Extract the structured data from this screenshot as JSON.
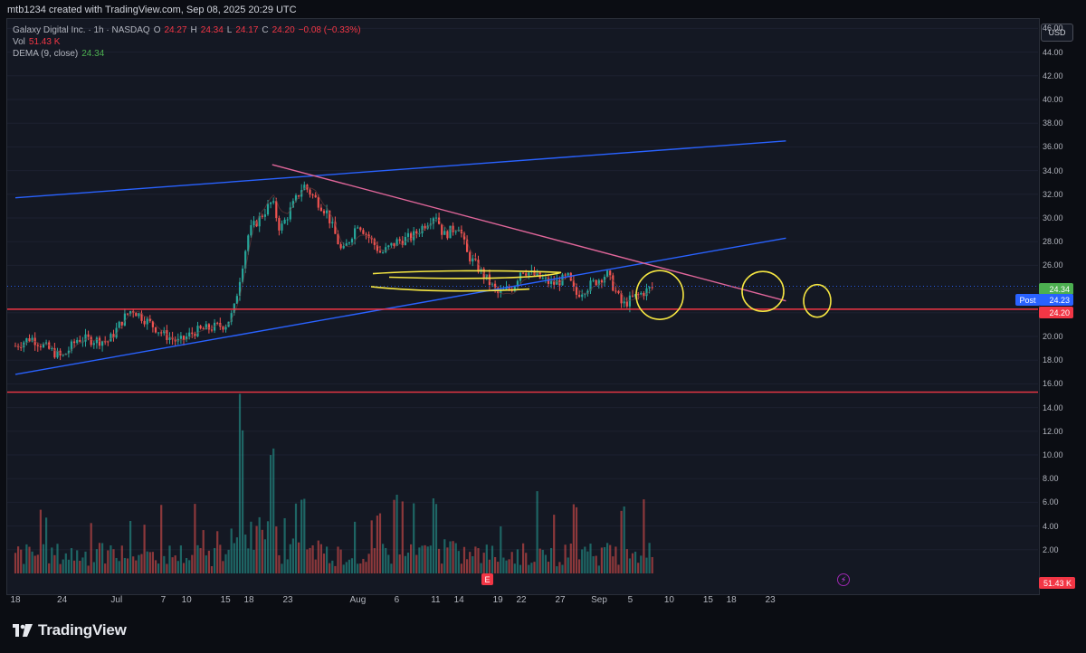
{
  "header": {
    "credit": "mtb1234 created with TradingView.com, Sep 08, 2025 20:29 UTC",
    "symbol": "Galaxy Digital Inc. · 1h · NASDAQ",
    "open_label": "O",
    "open": "24.27",
    "high_label": "H",
    "high": "24.34",
    "low_label": "L",
    "low": "24.17",
    "close_label": "C",
    "close": "24.20",
    "change": "−0.08 (−0.33%)",
    "vol_label": "Vol",
    "vol": "51.43 K",
    "dema_label": "DEMA (9, close)",
    "dema": "24.34",
    "currency": "USD"
  },
  "badges": {
    "dema": "24.34",
    "post_label": "Post",
    "post": "24.23",
    "last": "24.20",
    "volume": "51.43 K"
  },
  "footer": {
    "brand": "TradingView"
  },
  "markers": {
    "earnings": "E",
    "flash": "⚡"
  },
  "colors": {
    "up": "#26a69a",
    "down": "#ef5350",
    "dema": "#4caf50",
    "channel": "#2962ff",
    "downtrend": "#e0669a",
    "support": "#f23645",
    "annotation": "#f5e642"
  },
  "chart_data": {
    "type": "candlestick",
    "ylim": [
      0,
      47
    ],
    "yticks": [
      "46.00",
      "44.00",
      "42.00",
      "40.00",
      "38.00",
      "36.00",
      "34.00",
      "32.00",
      "30.00",
      "28.00",
      "26.00",
      "24.00",
      "22.00",
      "20.00",
      "18.00",
      "16.00",
      "14.00",
      "12.00",
      "10.00",
      "8.00",
      "6.00",
      "4.00",
      "2.00"
    ],
    "xticks": [
      "18",
      "24",
      "Jul",
      "7",
      "10",
      "15",
      "18",
      "23",
      "Aug",
      "6",
      "11",
      "14",
      "19",
      "22",
      "27",
      "Sep",
      "5",
      "10",
      "15",
      "18",
      "23"
    ],
    "close_path": [
      {
        "x": "Jun 18",
        "y": 19.2
      },
      {
        "x": "Jun 20",
        "y": 19.9
      },
      {
        "x": "Jun 24",
        "y": 18.2
      },
      {
        "x": "Jun 26",
        "y": 19.8
      },
      {
        "x": "Jun 30",
        "y": 19.6
      },
      {
        "x": "Jul 2",
        "y": 21.6
      },
      {
        "x": "Jul 3",
        "y": 22.3
      },
      {
        "x": "Jul 7",
        "y": 20.2
      },
      {
        "x": "Jul 9",
        "y": 19.5
      },
      {
        "x": "Jul 11",
        "y": 20.4
      },
      {
        "x": "Jul 15",
        "y": 21.0
      },
      {
        "x": "Jul 16",
        "y": 22.0
      },
      {
        "x": "Jul 17",
        "y": 25.5
      },
      {
        "x": "Jul 18",
        "y": 28.8
      },
      {
        "x": "Jul 21",
        "y": 31.4
      },
      {
        "x": "Jul 22",
        "y": 29.0
      },
      {
        "x": "Jul 24",
        "y": 31.5
      },
      {
        "x": "Jul 25",
        "y": 32.8
      },
      {
        "x": "Jul 28",
        "y": 30.5
      },
      {
        "x": "Jul 30",
        "y": 27.0
      },
      {
        "x": "Aug 1",
        "y": 29.6
      },
      {
        "x": "Aug 4",
        "y": 27.0
      },
      {
        "x": "Aug 6",
        "y": 28.0
      },
      {
        "x": "Aug 8",
        "y": 28.4
      },
      {
        "x": "Aug 11",
        "y": 30.4
      },
      {
        "x": "Aug 12",
        "y": 28.5
      },
      {
        "x": "Aug 14",
        "y": 29.4
      },
      {
        "x": "Aug 15",
        "y": 27.0
      },
      {
        "x": "Aug 19",
        "y": 23.6
      },
      {
        "x": "Aug 21",
        "y": 24.2
      },
      {
        "x": "Aug 22",
        "y": 25.7
      },
      {
        "x": "Aug 26",
        "y": 24.4
      },
      {
        "x": "Aug 28",
        "y": 25.0
      },
      {
        "x": "Aug 29",
        "y": 23.5
      },
      {
        "x": "Sep 2",
        "y": 25.3
      },
      {
        "x": "Sep 4",
        "y": 22.6
      },
      {
        "x": "Sep 5",
        "y": 23.1
      },
      {
        "x": "Sep 8",
        "y": 24.2
      }
    ],
    "volume_peaks": [
      {
        "x": "Jul 17",
        "y": 12.6
      },
      {
        "x": "Jul 21",
        "y": 11.0
      },
      {
        "x": "Jul 25",
        "y": 6.8
      },
      {
        "x": "Aug 6",
        "y": 6.8
      },
      {
        "x": "Aug 11",
        "y": 6.5
      },
      {
        "x": "Aug 29",
        "y": 6.0
      },
      {
        "x": "Sep 4",
        "y": 5.7
      }
    ],
    "lines": [
      {
        "kind": "channel-upper",
        "from": {
          "x": "Jun 18",
          "y": 31.7
        },
        "to": {
          "x": "Sep 25",
          "y": 36.5
        }
      },
      {
        "kind": "channel-lower",
        "from": {
          "x": "Jun 18",
          "y": 16.8
        },
        "to": {
          "x": "Sep 25",
          "y": 28.3
        }
      },
      {
        "kind": "downtrend",
        "from": {
          "x": "Jul 21",
          "y": 34.5
        },
        "to": {
          "x": "Sep 25",
          "y": 23.0
        }
      },
      {
        "kind": "support",
        "y": 22.3
      },
      {
        "kind": "support",
        "y": 15.3
      }
    ]
  }
}
